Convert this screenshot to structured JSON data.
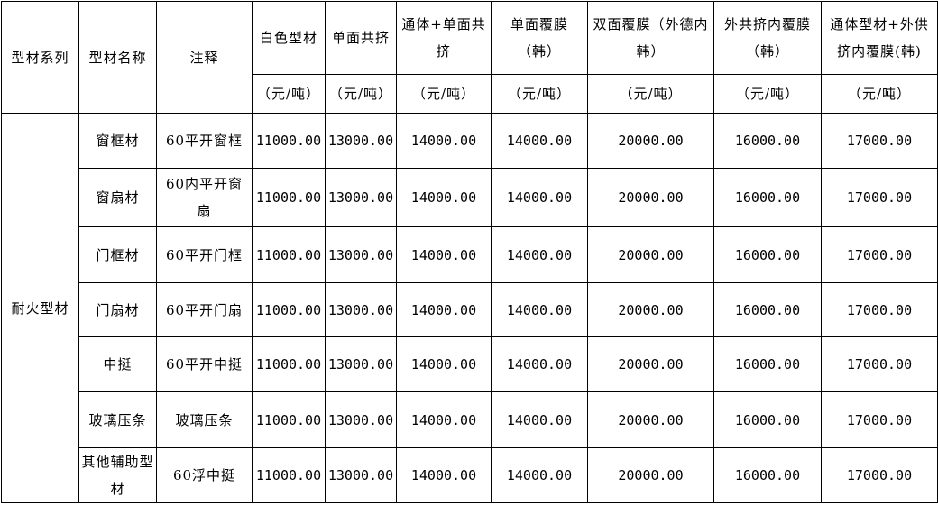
{
  "headers": {
    "series": "型材系列",
    "name": "型材名称",
    "note": "注释",
    "price_columns": [
      {
        "label": "白色型材",
        "unit": "（元/吨）"
      },
      {
        "label": "单面共挤",
        "unit": "（元/吨）"
      },
      {
        "label": "通体+单面共挤",
        "unit": "（元/吨）"
      },
      {
        "label": "单面覆膜（韩）",
        "unit": "（元/吨）"
      },
      {
        "label": "双面覆膜（外德内韩）",
        "unit": "（元/吨）"
      },
      {
        "label": "外共挤内覆膜（韩）",
        "unit": "（元/吨）"
      },
      {
        "label": "通体型材+外供挤内覆膜(韩)",
        "unit": "（元/吨）"
      }
    ]
  },
  "series_name": "耐火型材",
  "rows": [
    {
      "name": "窗框材",
      "note": "60平开窗框",
      "prices": [
        "11000.00",
        "13000.00",
        "14000.00",
        "14000.00",
        "20000.00",
        "16000.00",
        "17000.00"
      ]
    },
    {
      "name": "窗扇材",
      "note": "60内平开窗扇",
      "prices": [
        "11000.00",
        "13000.00",
        "14000.00",
        "14000.00",
        "20000.00",
        "16000.00",
        "17000.00"
      ]
    },
    {
      "name": "门框材",
      "note": "60平开门框",
      "prices": [
        "11000.00",
        "13000.00",
        "14000.00",
        "14000.00",
        "20000.00",
        "16000.00",
        "17000.00"
      ]
    },
    {
      "name": "门扇材",
      "note": "60平开门扇",
      "prices": [
        "11000.00",
        "13000.00",
        "14000.00",
        "14000.00",
        "20000.00",
        "16000.00",
        "17000.00"
      ]
    },
    {
      "name": "中挺",
      "note": "60平开中挺",
      "prices": [
        "11000.00",
        "13000.00",
        "14000.00",
        "14000.00",
        "20000.00",
        "16000.00",
        "17000.00"
      ]
    },
    {
      "name": "玻璃压条",
      "note": "玻璃压条",
      "prices": [
        "11000.00",
        "13000.00",
        "14000.00",
        "14000.00",
        "20000.00",
        "16000.00",
        "17000.00"
      ]
    },
    {
      "name": "其他辅助型材",
      "note": "60浮中挺",
      "prices": [
        "11000.00",
        "13000.00",
        "14000.00",
        "14000.00",
        "20000.00",
        "16000.00",
        "17000.00"
      ]
    }
  ]
}
